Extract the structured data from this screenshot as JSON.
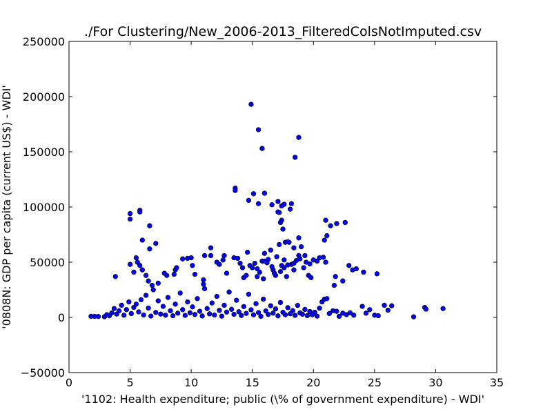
{
  "chart_data": {
    "type": "scatter",
    "title": "./For Clustering/New_2006-2013_FilteredColsNotImputed.csv",
    "xlabel": "'1102: Health expenditure; public  (\\% of government expenditure) - WDI'",
    "ylabel": "'0808N: GDP per capita  (current US$) - WDI'",
    "xlim": [
      0,
      35
    ],
    "ylim": [
      -50000,
      250000
    ],
    "xticks": [
      0,
      5,
      10,
      15,
      20,
      25,
      30,
      35
    ],
    "yticks": [
      -50000,
      0,
      50000,
      100000,
      150000,
      200000,
      250000
    ],
    "xtick_labels": [
      "0",
      "5",
      "10",
      "15",
      "20",
      "25",
      "30",
      "35"
    ],
    "ytick_labels": [
      "−50000",
      "0",
      "50000",
      "100000",
      "150000",
      "200000",
      "250000"
    ],
    "grid": false,
    "marker_color": "#0000ff",
    "marker_edge_color": "#000000",
    "series": [
      {
        "points": [
          [
            1.8,
            1000
          ],
          [
            2.1,
            900
          ],
          [
            2.4,
            800
          ],
          [
            2.9,
            600
          ],
          [
            3.1,
            2500
          ],
          [
            3.3,
            1500
          ],
          [
            3.5,
            4000
          ],
          [
            3.7,
            8000
          ],
          [
            3.9,
            3000
          ],
          [
            4.1,
            6000
          ],
          [
            4.3,
            11000
          ],
          [
            4.5,
            2000
          ],
          [
            4.7,
            7000
          ],
          [
            4.9,
            14000
          ],
          [
            5.1,
            3500
          ],
          [
            5.3,
            9000
          ],
          [
            5.5,
            12000
          ],
          [
            5.7,
            5000
          ],
          [
            5.9,
            16000
          ],
          [
            6.1,
            2200
          ],
          [
            6.3,
            20000
          ],
          [
            6.5,
            8500
          ],
          [
            6.7,
            1200
          ],
          [
            6.9,
            25000
          ],
          [
            7.1,
            4500
          ],
          [
            7.3,
            15000
          ],
          [
            7.5,
            3000
          ],
          [
            7.7,
            10000
          ],
          [
            7.9,
            2000
          ],
          [
            8.1,
            18000
          ],
          [
            8.3,
            6000
          ],
          [
            8.5,
            1500
          ],
          [
            8.7,
            12000
          ],
          [
            8.9,
            3800
          ],
          [
            9.1,
            22000
          ],
          [
            9.3,
            7000
          ],
          [
            9.5,
            1800
          ],
          [
            9.7,
            14000
          ],
          [
            9.9,
            4200
          ],
          [
            10.1,
            9500
          ],
          [
            10.3,
            2600
          ],
          [
            10.5,
            17000
          ],
          [
            10.7,
            5500
          ],
          [
            10.9,
            1300
          ],
          [
            11.1,
            26000
          ],
          [
            11.3,
            8000
          ],
          [
            11.5,
            3200
          ],
          [
            11.7,
            13000
          ],
          [
            11.9,
            2100
          ],
          [
            12.1,
            19000
          ],
          [
            12.3,
            6400
          ],
          [
            12.5,
            1100
          ],
          [
            12.7,
            11000
          ],
          [
            12.9,
            4800
          ],
          [
            13.1,
            23000
          ],
          [
            13.3,
            7300
          ],
          [
            13.5,
            2800
          ],
          [
            13.7,
            15500
          ],
          [
            13.9,
            5100
          ],
          [
            14.1,
            1700
          ],
          [
            14.3,
            9800
          ],
          [
            14.5,
            3600
          ],
          [
            14.7,
            21000
          ],
          [
            14.9,
            6900
          ],
          [
            15.1,
            2300
          ],
          [
            15.3,
            12500
          ],
          [
            15.5,
            4400
          ],
          [
            15.7,
            1000
          ],
          [
            15.9,
            16500
          ],
          [
            16.1,
            5800
          ],
          [
            16.3,
            2700
          ],
          [
            16.5,
            10500
          ],
          [
            16.7,
            3900
          ],
          [
            16.9,
            7700
          ],
          [
            17.1,
            1400
          ],
          [
            17.3,
            13500
          ],
          [
            17.5,
            4600
          ],
          [
            17.7,
            2400
          ],
          [
            17.9,
            8800
          ],
          [
            18.1,
            3300
          ],
          [
            18.3,
            6100
          ],
          [
            18.5,
            1900
          ],
          [
            18.7,
            10800
          ],
          [
            18.9,
            4100
          ],
          [
            19.1,
            2900
          ],
          [
            19.3,
            7200
          ],
          [
            19.5,
            1600
          ],
          [
            19.7,
            5300
          ],
          [
            19.9,
            2300
          ],
          [
            20.1,
            4700
          ],
          [
            20.3,
            1100
          ],
          [
            20.5,
            8300
          ],
          [
            20.7,
            14000
          ],
          [
            20.9,
            16500
          ],
          [
            21.1,
            17000
          ],
          [
            21.3,
            3500
          ],
          [
            21.6,
            6000
          ],
          [
            21.9,
            5500
          ],
          [
            22.1,
            1000
          ],
          [
            22.4,
            3800
          ],
          [
            22.7,
            2500
          ],
          [
            23.0,
            4200
          ],
          [
            23.3,
            2000
          ],
          [
            24.0,
            10000
          ],
          [
            24.3,
            3800
          ],
          [
            24.6,
            7000
          ],
          [
            25.0,
            2000
          ],
          [
            25.3,
            1500
          ],
          [
            25.8,
            11000
          ],
          [
            26.1,
            6500
          ],
          [
            26.4,
            10500
          ],
          [
            28.2,
            500
          ],
          [
            29.1,
            9000
          ],
          [
            29.2,
            7500
          ],
          [
            30.6,
            8000
          ],
          [
            5.0,
            94000
          ],
          [
            5.0,
            89000
          ],
          [
            5.8,
            97000
          ],
          [
            5.8,
            95500
          ],
          [
            6.6,
            83000
          ],
          [
            6.0,
            70000
          ],
          [
            6.6,
            62000
          ],
          [
            7.1,
            67000
          ],
          [
            5.5,
            54000
          ],
          [
            5.6,
            50000
          ],
          [
            5.8,
            47000
          ],
          [
            5.0,
            48000
          ],
          [
            3.8,
            37000
          ],
          [
            5.3,
            41000
          ],
          [
            6.0,
            43000
          ],
          [
            6.3,
            38000
          ],
          [
            6.5,
            33000
          ],
          [
            6.8,
            29000
          ],
          [
            7.3,
            31000
          ],
          [
            7.8,
            40000
          ],
          [
            8.0,
            38000
          ],
          [
            8.6,
            39000
          ],
          [
            8.7,
            43000
          ],
          [
            8.8,
            45000
          ],
          [
            9.3,
            53000
          ],
          [
            9.7,
            53500
          ],
          [
            10.0,
            54000
          ],
          [
            10.1,
            47000
          ],
          [
            10.3,
            39000
          ],
          [
            11.0,
            30000
          ],
          [
            11.0,
            34000
          ],
          [
            11.1,
            56000
          ],
          [
            11.6,
            63000
          ],
          [
            11.6,
            56000
          ],
          [
            12.1,
            50000
          ],
          [
            12.3,
            48000
          ],
          [
            12.6,
            52000
          ],
          [
            12.7,
            56000
          ],
          [
            12.9,
            40000
          ],
          [
            13.5,
            54000
          ],
          [
            13.8,
            53500
          ],
          [
            14.0,
            49000
          ],
          [
            14.2,
            45000
          ],
          [
            14.3,
            36000
          ],
          [
            14.5,
            38000
          ],
          [
            14.6,
            59000
          ],
          [
            14.8,
            47000
          ],
          [
            15.0,
            45000
          ],
          [
            15.2,
            49000
          ],
          [
            15.4,
            44000
          ],
          [
            15.6,
            41000
          ],
          [
            15.8,
            51000
          ],
          [
            16.0,
            58000
          ],
          [
            16.2,
            49500
          ],
          [
            16.5,
            61000
          ],
          [
            16.7,
            43000
          ],
          [
            16.9,
            38000
          ],
          [
            17.0,
            55000
          ],
          [
            17.2,
            66000
          ],
          [
            17.4,
            47000
          ],
          [
            17.6,
            52000
          ],
          [
            17.8,
            37000
          ],
          [
            18.0,
            68000
          ],
          [
            18.2,
            48000
          ],
          [
            18.4,
            43000
          ],
          [
            18.6,
            51500
          ],
          [
            18.8,
            56000
          ],
          [
            19.0,
            64000
          ],
          [
            19.2,
            45000
          ],
          [
            19.4,
            50000
          ],
          [
            19.6,
            38000
          ],
          [
            19.8,
            36000
          ],
          [
            20.0,
            52000
          ],
          [
            20.3,
            51000
          ],
          [
            20.5,
            54000
          ],
          [
            20.8,
            54500
          ],
          [
            21.0,
            50000
          ],
          [
            20.9,
            70000
          ],
          [
            21.1,
            74000
          ],
          [
            21.0,
            88000
          ],
          [
            21.4,
            83000
          ],
          [
            21.9,
            85000
          ],
          [
            22.6,
            86000
          ],
          [
            21.8,
            37000
          ],
          [
            21.7,
            29000
          ],
          [
            22.4,
            33000
          ],
          [
            22.9,
            47000
          ],
          [
            23.2,
            43000
          ],
          [
            23.5,
            44000
          ],
          [
            24.1,
            41000
          ],
          [
            25.2,
            39500
          ],
          [
            16.0,
            51000
          ],
          [
            16.3,
            52500
          ],
          [
            16.6,
            46000
          ],
          [
            16.8,
            40000
          ],
          [
            17.3,
            41500
          ],
          [
            17.6,
            45000
          ],
          [
            17.9,
            47500
          ],
          [
            18.4,
            49000
          ],
          [
            18.9,
            53000
          ],
          [
            19.3,
            56000
          ],
          [
            19.7,
            48500
          ],
          [
            15.4,
            37000
          ],
          [
            15.9,
            35000
          ],
          [
            13.6,
            117000
          ],
          [
            13.6,
            115000
          ],
          [
            14.7,
            106000
          ],
          [
            15.1,
            112000
          ],
          [
            15.5,
            103000
          ],
          [
            16.0,
            112500
          ],
          [
            16.6,
            102000
          ],
          [
            17.1,
            105000
          ],
          [
            17.4,
            101000
          ],
          [
            17.6,
            102500
          ],
          [
            17.2,
            95000
          ],
          [
            17.3,
            86000
          ],
          [
            17.4,
            88000
          ],
          [
            17.5,
            80000
          ],
          [
            17.1,
            95500
          ],
          [
            18.2,
            103000
          ],
          [
            18.1,
            98000
          ],
          [
            18.8,
            72000
          ],
          [
            18.4,
            63000
          ],
          [
            17.7,
            68000
          ],
          [
            17.9,
            68500
          ],
          [
            14.9,
            193000
          ],
          [
            15.5,
            170000
          ],
          [
            15.8,
            153000
          ],
          [
            18.8,
            163000
          ],
          [
            18.5,
            145000
          ]
        ]
      }
    ]
  }
}
